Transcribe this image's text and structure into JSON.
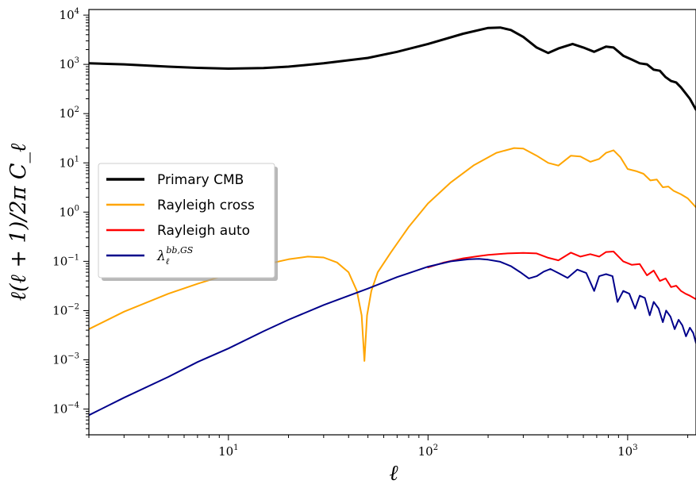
{
  "chart_data": {
    "type": "line",
    "xscale": "log",
    "yscale": "log",
    "xlim": [
      2,
      2200
    ],
    "ylim": [
      3e-05,
      13000
    ],
    "xlabel": "ℓ",
    "ylabel": "ℓ(ℓ + 1)/2π C_ℓ",
    "x_ticks": [
      {
        "value": 10,
        "base": "10",
        "exp": "1"
      },
      {
        "value": 100,
        "base": "10",
        "exp": "2"
      },
      {
        "value": 1000,
        "base": "10",
        "exp": "3"
      }
    ],
    "y_ticks": [
      {
        "value": 0.0001,
        "base": "10",
        "exp": "−4"
      },
      {
        "value": 0.001,
        "base": "10",
        "exp": "−3"
      },
      {
        "value": 0.01,
        "base": "10",
        "exp": "−2"
      },
      {
        "value": 0.1,
        "base": "10",
        "exp": "−1"
      },
      {
        "value": 1,
        "base": "10",
        "exp": "0"
      },
      {
        "value": 10,
        "base": "10",
        "exp": "1"
      },
      {
        "value": 100,
        "base": "10",
        "exp": "2"
      },
      {
        "value": 1000,
        "base": "10",
        "exp": "3"
      },
      {
        "value": 10000,
        "base": "10",
        "exp": "4"
      }
    ],
    "legend_position": "center-left",
    "series": [
      {
        "name": "Primary CMB",
        "color": "#000000",
        "width": 3,
        "points": [
          [
            2,
            1050
          ],
          [
            3,
            1000
          ],
          [
            5,
            900
          ],
          [
            7,
            850
          ],
          [
            10,
            820
          ],
          [
            15,
            840
          ],
          [
            20,
            900
          ],
          [
            30,
            1050
          ],
          [
            50,
            1350
          ],
          [
            70,
            1800
          ],
          [
            100,
            2600
          ],
          [
            150,
            4200
          ],
          [
            200,
            5500
          ],
          [
            230,
            5600
          ],
          [
            260,
            5000
          ],
          [
            300,
            3600
          ],
          [
            350,
            2200
          ],
          [
            400,
            1700
          ],
          [
            450,
            2100
          ],
          [
            530,
            2600
          ],
          [
            600,
            2200
          ],
          [
            680,
            1800
          ],
          [
            780,
            2300
          ],
          [
            850,
            2200
          ],
          [
            950,
            1500
          ],
          [
            1050,
            1250
          ],
          [
            1150,
            1050
          ],
          [
            1250,
            1000
          ],
          [
            1350,
            780
          ],
          [
            1450,
            740
          ],
          [
            1550,
            550
          ],
          [
            1650,
            460
          ],
          [
            1750,
            430
          ],
          [
            1850,
            340
          ],
          [
            1950,
            260
          ],
          [
            2050,
            200
          ],
          [
            2200,
            120
          ]
        ]
      },
      {
        "name": "Rayleigh cross",
        "color": "#ffa500",
        "width": 2,
        "points": [
          [
            2,
            0.0042
          ],
          [
            3,
            0.0095
          ],
          [
            5,
            0.022
          ],
          [
            7,
            0.035
          ],
          [
            10,
            0.055
          ],
          [
            15,
            0.085
          ],
          [
            20,
            0.11
          ],
          [
            25,
            0.125
          ],
          [
            30,
            0.12
          ],
          [
            35,
            0.095
          ],
          [
            40,
            0.06
          ],
          [
            44,
            0.025
          ],
          [
            46.5,
            0.008
          ],
          [
            48,
            0.00095
          ],
          [
            49.5,
            0.008
          ],
          [
            52,
            0.025
          ],
          [
            56,
            0.06
          ],
          [
            65,
            0.15
          ],
          [
            80,
            0.5
          ],
          [
            100,
            1.5
          ],
          [
            130,
            4
          ],
          [
            170,
            9
          ],
          [
            220,
            16
          ],
          [
            270,
            20
          ],
          [
            300,
            19.5
          ],
          [
            350,
            14
          ],
          [
            400,
            10
          ],
          [
            450,
            8.8
          ],
          [
            520,
            14
          ],
          [
            580,
            13.5
          ],
          [
            650,
            10.5
          ],
          [
            720,
            12
          ],
          [
            780,
            16
          ],
          [
            850,
            18
          ],
          [
            920,
            13
          ],
          [
            1000,
            7.5
          ],
          [
            1100,
            6.8
          ],
          [
            1200,
            6
          ],
          [
            1300,
            4.4
          ],
          [
            1400,
            4.6
          ],
          [
            1500,
            3.2
          ],
          [
            1600,
            3.3
          ],
          [
            1700,
            2.7
          ],
          [
            1850,
            2.3
          ],
          [
            2000,
            1.9
          ],
          [
            2200,
            1.25
          ]
        ]
      },
      {
        "name": "Rayleigh auto",
        "color": "#ff0000",
        "width": 2,
        "points": [
          [
            100,
            0.075
          ],
          [
            120,
            0.095
          ],
          [
            150,
            0.115
          ],
          [
            180,
            0.128
          ],
          [
            200,
            0.135
          ],
          [
            250,
            0.145
          ],
          [
            300,
            0.148
          ],
          [
            350,
            0.145
          ],
          [
            400,
            0.118
          ],
          [
            450,
            0.105
          ],
          [
            520,
            0.15
          ],
          [
            580,
            0.125
          ],
          [
            650,
            0.14
          ],
          [
            720,
            0.125
          ],
          [
            780,
            0.155
          ],
          [
            850,
            0.158
          ],
          [
            950,
            0.1
          ],
          [
            1050,
            0.085
          ],
          [
            1150,
            0.088
          ],
          [
            1250,
            0.052
          ],
          [
            1350,
            0.065
          ],
          [
            1450,
            0.04
          ],
          [
            1550,
            0.045
          ],
          [
            1650,
            0.03
          ],
          [
            1750,
            0.032
          ],
          [
            1850,
            0.025
          ],
          [
            1950,
            0.022
          ],
          [
            2050,
            0.02
          ],
          [
            2200,
            0.017
          ]
        ]
      },
      {
        "name": "λ_ℓ^{bb,GS}",
        "color": "#00008b",
        "width": 2,
        "points": [
          [
            2,
            7.5e-05
          ],
          [
            3,
            0.00017
          ],
          [
            5,
            0.00045
          ],
          [
            7,
            0.0009
          ],
          [
            10,
            0.0017
          ],
          [
            15,
            0.0038
          ],
          [
            20,
            0.0065
          ],
          [
            30,
            0.013
          ],
          [
            50,
            0.028
          ],
          [
            70,
            0.048
          ],
          [
            100,
            0.078
          ],
          [
            130,
            0.1
          ],
          [
            160,
            0.11
          ],
          [
            180,
            0.112
          ],
          [
            200,
            0.108
          ],
          [
            230,
            0.098
          ],
          [
            260,
            0.08
          ],
          [
            290,
            0.06
          ],
          [
            320,
            0.045
          ],
          [
            350,
            0.05
          ],
          [
            380,
            0.062
          ],
          [
            410,
            0.07
          ],
          [
            450,
            0.058
          ],
          [
            500,
            0.046
          ],
          [
            560,
            0.068
          ],
          [
            620,
            0.058
          ],
          [
            680,
            0.025
          ],
          [
            720,
            0.05
          ],
          [
            780,
            0.055
          ],
          [
            840,
            0.05
          ],
          [
            890,
            0.015
          ],
          [
            950,
            0.025
          ],
          [
            1020,
            0.022
          ],
          [
            1090,
            0.011
          ],
          [
            1150,
            0.02
          ],
          [
            1220,
            0.018
          ],
          [
            1290,
            0.008
          ],
          [
            1350,
            0.015
          ],
          [
            1430,
            0.011
          ],
          [
            1500,
            0.0058
          ],
          [
            1560,
            0.01
          ],
          [
            1640,
            0.0075
          ],
          [
            1720,
            0.0042
          ],
          [
            1800,
            0.0065
          ],
          [
            1880,
            0.005
          ],
          [
            1960,
            0.003
          ],
          [
            2050,
            0.0045
          ],
          [
            2130,
            0.0035
          ],
          [
            2200,
            0.0022
          ]
        ]
      }
    ]
  }
}
